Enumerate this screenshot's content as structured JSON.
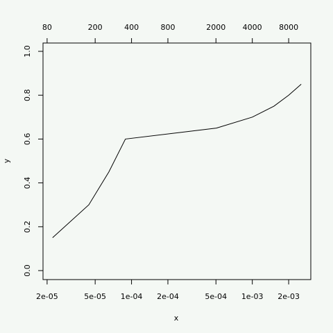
{
  "chart_data": {
    "type": "line",
    "x_label": "x",
    "y_label": "y",
    "x": [
      2.22e-05,
      4.43e-05,
      6.49e-05,
      8.9e-05,
      0.000505,
      0.001,
      0.00151,
      0.002,
      0.00254
    ],
    "values": [
      0.15,
      0.3,
      0.45,
      0.6,
      0.65,
      0.7,
      0.75,
      0.8,
      0.85
    ],
    "color": "#000000",
    "xlog": true,
    "xlim": [
      1.85e-05,
      0.00305
    ],
    "xticks": [
      {
        "value": 2e-05,
        "label": "2e-05"
      },
      {
        "value": 5e-05,
        "label": "5e-05"
      },
      {
        "value": 0.0001,
        "label": "1e-04"
      },
      {
        "value": 0.0002,
        "label": "2e-04"
      },
      {
        "value": 0.0005,
        "label": "5e-04"
      },
      {
        "value": 0.001,
        "label": "1e-03"
      },
      {
        "value": 0.002,
        "label": "2e-03"
      }
    ],
    "x2lim": [
      74,
      12200
    ],
    "x2ticks": [
      80,
      200,
      400,
      800,
      2000,
      4000,
      8000
    ],
    "ylim": [
      -0.041,
      1.038
    ],
    "yticks": [
      {
        "value": 0,
        "label": "0.0"
      },
      0.2,
      0.4,
      0.6,
      0.8,
      {
        "value": 1,
        "label": "1.0"
      }
    ],
    "grid": false
  }
}
